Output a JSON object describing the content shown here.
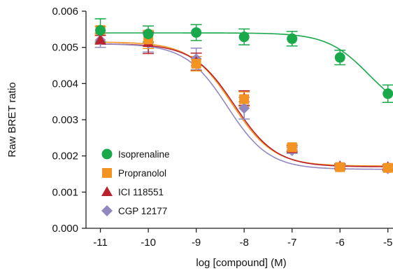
{
  "chart_data": {
    "type": "scatter",
    "title": "",
    "xlabel": "log [compound] (M)",
    "ylabel": "Raw BRET ratio",
    "x": [
      -11,
      -10,
      -9,
      -8,
      -7,
      -6,
      -5
    ],
    "xlim": [
      -11.3,
      -4.85
    ],
    "ylim": [
      0,
      0.006
    ],
    "x_ticks": [
      -11,
      -10,
      -9,
      -8,
      -7,
      -6,
      -5
    ],
    "y_ticks": [
      0,
      0.001,
      0.002,
      0.003,
      0.004,
      0.005,
      0.006
    ],
    "x_tick_labels": [
      "-11",
      "-10",
      "-9",
      "-8",
      "-7",
      "-6",
      "-5"
    ],
    "y_tick_labels": [
      "0.000",
      "0.001",
      "0.002",
      "0.003",
      "0.004",
      "0.005",
      "0.006"
    ],
    "grid": false,
    "legend_position": "bottom-left",
    "series": [
      {
        "name": "Isoprenaline",
        "color": "#19a84a",
        "marker": "circle",
        "values": [
          0.00547,
          0.00537,
          0.00541,
          0.00529,
          0.00524,
          0.00472,
          0.00372
        ],
        "errors": [
          0.00032,
          0.00022,
          0.00022,
          0.00022,
          0.0002,
          0.0002,
          0.00024
        ],
        "fit": {
          "bottom": 0.0031,
          "top": 0.0054,
          "logEC50": -5.4,
          "hill": 1.0
        }
      },
      {
        "name": "Propranolol",
        "color": "#f39422",
        "marker": "square",
        "values": [
          0.00548,
          0.00522,
          0.00455,
          0.00357,
          0.00224,
          0.00169,
          0.00167
        ],
        "errors": [
          0.0001,
          0.00025,
          0.0002,
          0.0002,
          8e-05,
          5e-05,
          6e-05
        ],
        "fit": {
          "bottom": 0.00172,
          "top": 0.00515,
          "logEC50": -8.25,
          "hill": 1.0
        }
      },
      {
        "name": "ICI 118551",
        "color": "#b8232e",
        "marker": "triangle",
        "values": [
          0.00521,
          0.00513,
          0.0046,
          0.0036,
          0.0022,
          0.00172,
          0.0017
        ],
        "errors": [
          0.00012,
          0.0003,
          0.00024,
          0.0002,
          8e-05,
          6e-05,
          6e-05
        ],
        "fit": {
          "bottom": 0.0017,
          "top": 0.0051,
          "logEC50": -8.2,
          "hill": 1.0
        }
      },
      {
        "name": "CGP 12177",
        "color": "#9288c0",
        "marker": "diamond",
        "values": [
          0.0052,
          0.00512,
          0.00468,
          0.00332,
          0.00215,
          0.0017,
          0.00165
        ],
        "errors": [
          0.0002,
          0.00025,
          0.0003,
          0.0003,
          8e-05,
          6e-05,
          6e-05
        ],
        "fit": {
          "bottom": 0.00163,
          "top": 0.0051,
          "logEC50": -8.35,
          "hill": 1.0
        }
      }
    ]
  }
}
